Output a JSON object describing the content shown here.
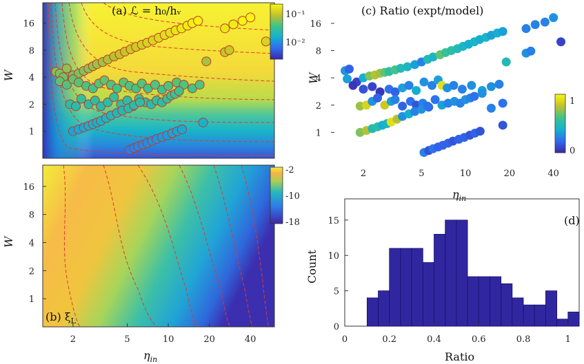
{
  "chart_data": [
    {
      "id": "a",
      "type": "heatmap",
      "title": "(a) ℒ = h₀/hᵥ",
      "xlabel": "",
      "ylabel": "W",
      "xscale": "log",
      "yscale": "log",
      "xlim": [
        1.2,
        60
      ],
      "ylim": [
        0.5,
        27
      ],
      "yticks": [
        1,
        2,
        4,
        8,
        16
      ],
      "colorbar": {
        "ticks": [
          "10⁻¹",
          "10⁻²"
        ],
        "range": [
          0.003,
          0.3
        ],
        "scale": "log"
      },
      "overlay": "scatter of experiments (orange/green/blue circles) with dashed red contours",
      "points": [
        [
          1.5,
          4.6
        ],
        [
          1.6,
          4.4
        ],
        [
          1.7,
          4.0
        ],
        [
          1.8,
          5.0
        ],
        [
          2.0,
          4.2
        ],
        [
          2.2,
          4.4
        ],
        [
          2.4,
          4.7
        ],
        [
          2.6,
          5.0
        ],
        [
          2.8,
          5.3
        ],
        [
          3.0,
          5.6
        ],
        [
          3.3,
          5.9
        ],
        [
          3.6,
          6.3
        ],
        [
          4.0,
          6.8
        ],
        [
          4.4,
          7.2
        ],
        [
          4.8,
          7.7
        ],
        [
          5.3,
          8.2
        ],
        [
          5.8,
          8.7
        ],
        [
          6.4,
          9.2
        ],
        [
          7.0,
          9.7
        ],
        [
          7.7,
          10.3
        ],
        [
          8.5,
          11.0
        ],
        [
          9.4,
          11.8
        ],
        [
          10.3,
          12.5
        ],
        [
          11.3,
          13.3
        ],
        [
          12.5,
          14.0
        ],
        [
          13.8,
          15.0
        ],
        [
          15.0,
          16.0
        ],
        [
          16.5,
          17.0
        ],
        [
          1.6,
          3.6
        ],
        [
          1.8,
          3.3
        ],
        [
          2.0,
          3.8
        ],
        [
          2.2,
          3.5
        ],
        [
          2.5,
          3.2
        ],
        [
          2.8,
          3.0
        ],
        [
          3.1,
          3.4
        ],
        [
          3.4,
          3.7
        ],
        [
          3.8,
          3.3
        ],
        [
          4.2,
          3.0
        ],
        [
          4.7,
          3.5
        ],
        [
          5.2,
          3.2
        ],
        [
          5.8,
          3.0
        ],
        [
          6.4,
          3.4
        ],
        [
          7.1,
          3.0
        ],
        [
          8.0,
          3.3
        ],
        [
          9.0,
          2.9
        ],
        [
          10.0,
          3.2
        ],
        [
          11.5,
          3.5
        ],
        [
          13.0,
          3.3
        ],
        [
          15.0,
          3.0
        ],
        [
          17.0,
          3.3
        ],
        [
          1.9,
          2.0
        ],
        [
          2.1,
          1.9
        ],
        [
          2.3,
          2.3
        ],
        [
          2.6,
          2.0
        ],
        [
          2.9,
          2.2
        ],
        [
          3.2,
          1.9
        ],
        [
          3.6,
          2.1
        ],
        [
          4.0,
          2.4
        ],
        [
          4.5,
          2.0
        ],
        [
          5.0,
          2.2
        ],
        [
          5.5,
          1.9
        ],
        [
          6.1,
          2.3
        ],
        [
          6.8,
          2.1
        ],
        [
          7.5,
          2.0
        ],
        [
          8.2,
          2.2
        ],
        [
          9.0,
          2.1
        ],
        [
          9.8,
          2.3
        ],
        [
          10.5,
          2.5
        ],
        [
          11.2,
          2.6
        ],
        [
          12.0,
          2.8
        ],
        [
          2.0,
          1.0
        ],
        [
          2.2,
          1.05
        ],
        [
          2.4,
          1.1
        ],
        [
          2.6,
          1.15
        ],
        [
          2.8,
          1.2
        ],
        [
          3.0,
          1.25
        ],
        [
          3.2,
          1.3
        ],
        [
          3.5,
          1.4
        ],
        [
          3.8,
          1.5
        ],
        [
          4.2,
          1.6
        ],
        [
          4.6,
          1.7
        ],
        [
          5.1,
          1.8
        ],
        [
          5.6,
          1.95
        ],
        [
          6.2,
          2.1
        ],
        [
          5.2,
          0.62
        ],
        [
          5.6,
          0.65
        ],
        [
          6.0,
          0.68
        ],
        [
          6.5,
          0.71
        ],
        [
          7.0,
          0.74
        ],
        [
          7.6,
          0.78
        ],
        [
          8.2,
          0.82
        ],
        [
          9.0,
          0.86
        ],
        [
          9.8,
          0.9
        ],
        [
          10.7,
          0.95
        ],
        [
          11.6,
          1.0
        ],
        [
          12.6,
          1.05
        ],
        [
          18.0,
          1.25
        ],
        [
          19.0,
          6.0
        ],
        [
          26.0,
          7.6
        ],
        [
          28.0,
          8.0
        ],
        [
          26.0,
          14.0
        ],
        [
          30.0,
          15.5
        ],
        [
          35.0,
          17.0
        ],
        [
          40.0,
          18.5
        ],
        [
          52.0,
          10.0
        ]
      ]
    },
    {
      "id": "b",
      "type": "heatmap",
      "title": "(b) ξ_L",
      "label_main": "(b) ξ",
      "label_sub": "L",
      "xlabel": "η_in",
      "xlabel_main": "η",
      "xlabel_sub": "in",
      "ylabel": "W",
      "xscale": "log",
      "yscale": "log",
      "xlim": [
        1.2,
        60
      ],
      "ylim": [
        0.5,
        27
      ],
      "xticks": [
        2,
        5,
        10,
        20,
        40
      ],
      "yticks": [
        1,
        2,
        4,
        8,
        16
      ],
      "colorbar": {
        "ticks": [
          "-2",
          "-10",
          "-18"
        ],
        "range": [
          -18,
          -2
        ]
      }
    },
    {
      "id": "c",
      "type": "scatter",
      "title": "(c) Ratio (expt/model)",
      "xlabel": "η_in",
      "xlabel_main": "η",
      "xlabel_sub": "in",
      "ylabel": "W",
      "xscale": "log",
      "yscale": "log",
      "xlim": [
        1.2,
        60
      ],
      "ylim": [
        0.5,
        27
      ],
      "xticks": [
        2,
        5,
        10,
        20,
        40
      ],
      "yticks": [
        1,
        2,
        4,
        8,
        16
      ],
      "colorbar": {
        "ticks": [
          "1",
          "0"
        ],
        "range": [
          0,
          1.15
        ]
      },
      "points": [
        [
          1.5,
          4.8,
          0.35
        ],
        [
          1.6,
          5.0,
          0.2
        ],
        [
          1.55,
          3.9,
          0.4
        ],
        [
          1.8,
          3.6,
          0.1
        ],
        [
          2.0,
          4.0,
          0.45
        ],
        [
          2.2,
          4.2,
          0.8
        ],
        [
          2.4,
          4.3,
          0.9
        ],
        [
          2.6,
          4.5,
          0.85
        ],
        [
          2.8,
          4.6,
          0.75
        ],
        [
          3.0,
          4.7,
          0.6
        ],
        [
          3.3,
          4.9,
          0.7
        ],
        [
          3.6,
          5.1,
          0.55
        ],
        [
          4.0,
          5.3,
          0.5
        ],
        [
          4.5,
          5.6,
          0.4
        ],
        [
          5.0,
          6.0,
          0.3
        ],
        [
          5.5,
          6.4,
          0.55
        ],
        [
          6.0,
          6.8,
          0.5
        ],
        [
          6.7,
          7.2,
          0.75
        ],
        [
          7.3,
          7.6,
          0.65
        ],
        [
          8.0,
          8.0,
          0.6
        ],
        [
          8.8,
          8.4,
          0.55
        ],
        [
          9.6,
          8.9,
          0.5
        ],
        [
          10.5,
          9.4,
          0.45
        ],
        [
          11.5,
          10.0,
          0.5
        ],
        [
          12.5,
          10.6,
          0.45
        ],
        [
          13.8,
          11.2,
          0.5
        ],
        [
          15.0,
          11.8,
          0.4
        ],
        [
          16.5,
          12.5,
          0.45
        ],
        [
          18.0,
          13.0,
          0.4
        ],
        [
          1.7,
          3.3,
          0.05
        ],
        [
          2.0,
          3.0,
          0.15
        ],
        [
          2.3,
          3.2,
          0.1
        ],
        [
          2.6,
          2.8,
          0.05
        ],
        [
          3.0,
          3.0,
          0.25
        ],
        [
          3.3,
          2.8,
          0.2
        ],
        [
          3.7,
          3.1,
          0.4
        ],
        [
          4.1,
          3.3,
          0.3
        ],
        [
          4.6,
          2.9,
          0.45
        ],
        [
          5.2,
          3.6,
          0.35
        ],
        [
          5.9,
          3.3,
          0.3
        ],
        [
          6.5,
          3.8,
          0.4
        ],
        [
          6.9,
          3.3,
          1.05
        ],
        [
          7.5,
          3.1,
          0.35
        ],
        [
          8.3,
          3.3,
          0.3
        ],
        [
          9.5,
          3.0,
          0.3
        ],
        [
          11.0,
          3.3,
          0.35
        ],
        [
          13.0,
          2.9,
          0.4
        ],
        [
          15.0,
          3.2,
          0.35
        ],
        [
          17.0,
          3.4,
          0.3
        ],
        [
          1.9,
          1.95,
          0.85
        ],
        [
          2.1,
          2.0,
          1.0
        ],
        [
          2.3,
          2.2,
          0.35
        ],
        [
          2.5,
          2.4,
          0.2
        ],
        [
          2.8,
          2.0,
          0.95
        ],
        [
          3.1,
          2.2,
          0.4
        ],
        [
          3.3,
          2.3,
          0.3
        ],
        [
          3.7,
          1.95,
          0.2
        ],
        [
          4.2,
          2.2,
          0.25
        ],
        [
          4.6,
          2.0,
          0.15
        ],
        [
          5.1,
          2.1,
          0.3
        ],
        [
          5.6,
          1.9,
          0.2
        ],
        [
          6.2,
          2.3,
          0.25
        ],
        [
          6.9,
          2.0,
          0.4
        ],
        [
          7.6,
          2.1,
          0.3
        ],
        [
          8.4,
          2.2,
          0.35
        ],
        [
          9.2,
          2.1,
          0.3
        ],
        [
          10.0,
          2.3,
          0.35
        ],
        [
          10.8,
          2.4,
          0.3
        ],
        [
          11.5,
          2.5,
          0.25
        ],
        [
          13.0,
          2.7,
          0.35
        ],
        [
          15.0,
          1.85,
          0.3
        ],
        [
          18.0,
          2.1,
          0.25
        ],
        [
          1.9,
          1.0,
          0.8
        ],
        [
          2.1,
          1.05,
          0.9
        ],
        [
          2.3,
          1.1,
          0.55
        ],
        [
          2.5,
          1.15,
          0.6
        ],
        [
          2.7,
          1.2,
          0.45
        ],
        [
          2.9,
          1.25,
          0.5
        ],
        [
          3.1,
          1.3,
          1.05
        ],
        [
          3.4,
          1.4,
          0.9
        ],
        [
          3.7,
          1.5,
          0.35
        ],
        [
          4.1,
          1.6,
          0.45
        ],
        [
          4.5,
          1.7,
          0.3
        ],
        [
          5.0,
          1.8,
          0.35
        ],
        [
          5.5,
          1.95,
          0.25
        ],
        [
          5.2,
          0.6,
          0.3
        ],
        [
          5.6,
          0.63,
          0.15
        ],
        [
          6.0,
          0.66,
          0.25
        ],
        [
          6.5,
          0.69,
          0.2
        ],
        [
          7.0,
          0.72,
          0.2
        ],
        [
          7.6,
          0.76,
          0.2
        ],
        [
          8.2,
          0.8,
          0.15
        ],
        [
          9.0,
          0.84,
          0.2
        ],
        [
          9.8,
          0.88,
          0.2
        ],
        [
          10.7,
          0.93,
          0.15
        ],
        [
          11.6,
          0.98,
          0.2
        ],
        [
          12.6,
          1.03,
          0.15
        ],
        [
          18.0,
          1.2,
          0.15
        ],
        [
          19.0,
          6.0,
          0.55
        ],
        [
          26.0,
          7.5,
          0.35
        ],
        [
          28.0,
          7.9,
          0.3
        ],
        [
          26.0,
          14.0,
          0.3
        ],
        [
          30.0,
          15.5,
          0.3
        ],
        [
          35.0,
          16.5,
          0.3
        ],
        [
          40.0,
          18.5,
          0.35
        ],
        [
          45.0,
          10.0,
          0.1
        ]
      ]
    },
    {
      "id": "d",
      "type": "bar",
      "title": "(d)",
      "xlabel": "Ratio",
      "ylabel": "Count",
      "xlim": [
        0,
        1.05
      ],
      "ylim": [
        0,
        18
      ],
      "xticks": [
        0,
        0.2,
        0.4,
        0.6,
        0.8,
        1
      ],
      "yticks": [
        0,
        5,
        10,
        15
      ],
      "bin_width": 0.05,
      "bin_starts": [
        0.1,
        0.15,
        0.2,
        0.25,
        0.3,
        0.35,
        0.4,
        0.45,
        0.5,
        0.55,
        0.6,
        0.65,
        0.7,
        0.75,
        0.8,
        0.85,
        0.9,
        0.95,
        1.0
      ],
      "values": [
        4,
        5,
        11,
        11,
        11,
        9,
        13,
        15,
        15,
        7,
        7,
        7,
        6,
        4,
        3,
        3,
        5,
        1,
        2
      ],
      "bar_color": "#3027a0"
    }
  ]
}
